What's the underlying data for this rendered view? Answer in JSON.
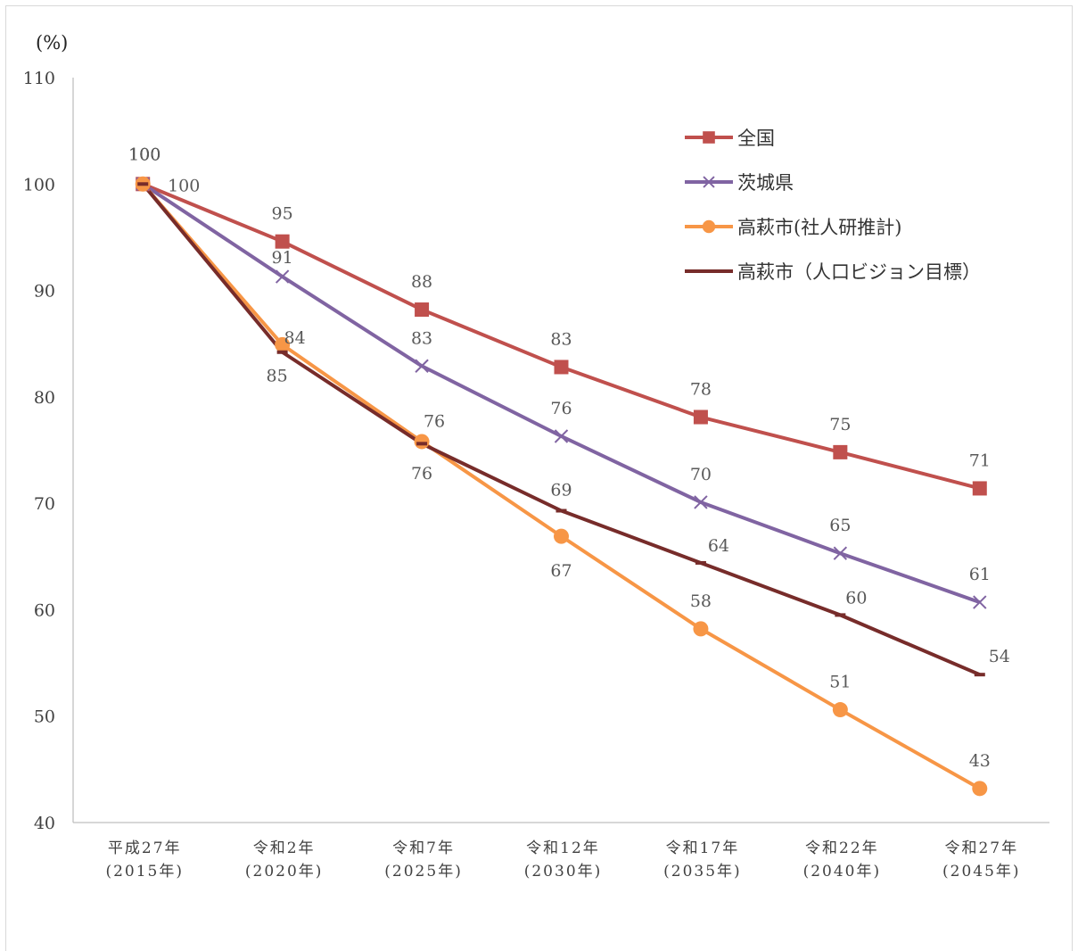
{
  "chart_data": {
    "type": "line",
    "y_unit_label": "(%)",
    "ylim": [
      40,
      110
    ],
    "y_ticks": [
      "40",
      "50",
      "60",
      "70",
      "80",
      "90",
      "100",
      "110"
    ],
    "categories": [
      [
        "平成27年",
        "(2015年)"
      ],
      [
        "令和2年",
        "(2020年)"
      ],
      [
        "令和7年",
        "(2025年)"
      ],
      [
        "令和12年",
        "(2030年)"
      ],
      [
        "令和17年",
        "(2035年)"
      ],
      [
        "令和22年",
        "(2040年)"
      ],
      [
        "令和27年",
        "(2045年)"
      ]
    ],
    "grid": false,
    "legend_position": "top-right",
    "series": [
      {
        "name": "全国",
        "color": "#c0504d",
        "marker": "square",
        "values": [
          100,
          94.6,
          88.2,
          82.8,
          78.1,
          74.8,
          71.4
        ],
        "labels": [
          "100",
          "95",
          "88",
          "83",
          "78",
          "75",
          "71"
        ]
      },
      {
        "name": "茨城県",
        "color": "#8064a2",
        "marker": "x",
        "values": [
          100,
          91.3,
          82.9,
          76.3,
          70.1,
          65.3,
          60.7
        ],
        "labels": [
          "100",
          "91",
          "83",
          "76",
          "70",
          "65",
          "61"
        ]
      },
      {
        "name": "高萩市(社人研推計)",
        "color": "#f79646",
        "marker": "circle",
        "values": [
          100,
          84.9,
          75.8,
          66.9,
          58.2,
          50.6,
          43.2
        ],
        "labels": [
          "100",
          "85",
          "76",
          "67",
          "58",
          "51",
          "43"
        ]
      },
      {
        "name": "高萩市（人口ビジョン目標）",
        "color": "#772c2a",
        "marker": "dash",
        "values": [
          100,
          84.2,
          75.6,
          69.3,
          64.4,
          59.5,
          53.9
        ],
        "labels": [
          "100",
          "84",
          "76",
          "69",
          "64",
          "60",
          "54"
        ]
      }
    ]
  }
}
